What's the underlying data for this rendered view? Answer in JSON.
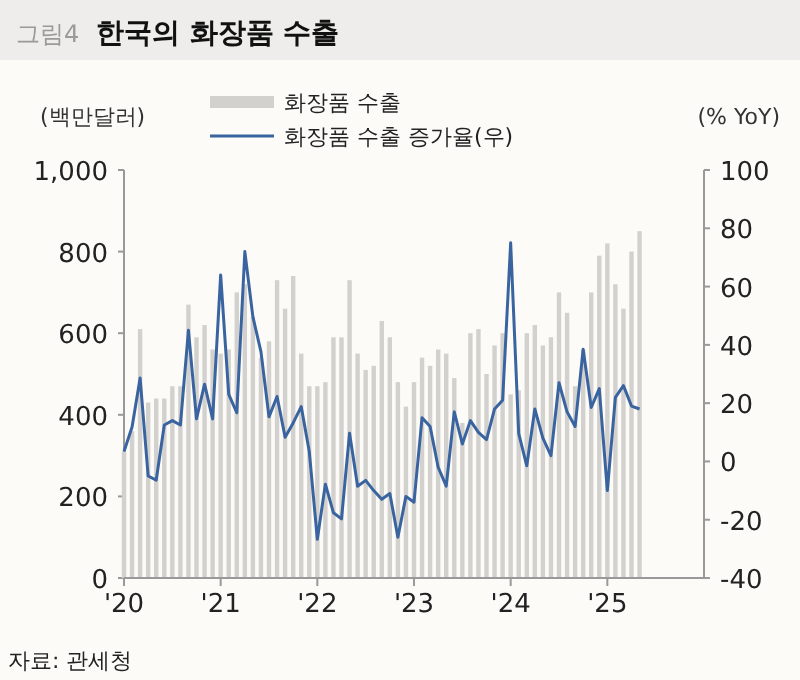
{
  "chart_data": {
    "type": "bar",
    "title": "한국의 화장품 수출",
    "annotations": [
      "그림4",
      "자료: 관세청"
    ],
    "ylabel": "(백만달러)",
    "y2label": "(% YoY)",
    "x": [
      "2020-01",
      "2020-02",
      "2020-03",
      "2020-04",
      "2020-05",
      "2020-06",
      "2020-07",
      "2020-08",
      "2020-09",
      "2020-10",
      "2020-11",
      "2020-12",
      "2021-01",
      "2021-02",
      "2021-03",
      "2021-04",
      "2021-05",
      "2021-06",
      "2021-07",
      "2021-08",
      "2021-09",
      "2021-10",
      "2021-11",
      "2021-12",
      "2022-01",
      "2022-02",
      "2022-03",
      "2022-04",
      "2022-05",
      "2022-06",
      "2022-07",
      "2022-08",
      "2022-09",
      "2022-10",
      "2022-11",
      "2022-12",
      "2023-01",
      "2023-02",
      "2023-03",
      "2023-04",
      "2023-05",
      "2023-06",
      "2023-07",
      "2023-08",
      "2023-09",
      "2023-10",
      "2023-11",
      "2023-12",
      "2024-01",
      "2024-02",
      "2024-03",
      "2024-04",
      "2024-05",
      "2024-06",
      "2024-07",
      "2024-08",
      "2024-09",
      "2024-10",
      "2024-11",
      "2024-12",
      "2025-01",
      "2025-02",
      "2025-03",
      "2025-04",
      "2025-05"
    ],
    "series": [
      {
        "name": "화장품 수출",
        "color": "#d3d1ce",
        "values": [
          310,
          360,
          610,
          430,
          440,
          440,
          470,
          470,
          670,
          590,
          620,
          560,
          550,
          560,
          700,
          720,
          640,
          540,
          580,
          730,
          660,
          740,
          550,
          470,
          470,
          480,
          590,
          590,
          730,
          550,
          510,
          520,
          630,
          590,
          480,
          420,
          480,
          540,
          520,
          560,
          550,
          490,
          380,
          600,
          610,
          500,
          570,
          600,
          450,
          460,
          600,
          620,
          570,
          590,
          700,
          650,
          470,
          560,
          700,
          790,
          820,
          720,
          660,
          800,
          850
        ]
      },
      {
        "name": "화장품 수출 증가율(우)",
        "type": "line",
        "axis": "y2",
        "color": "#3a64a0",
        "values": [
          3.4,
          11.8,
          28.6,
          -5,
          -6.4,
          12.5,
          14,
          12.5,
          45,
          14.6,
          26.5,
          14.6,
          64,
          23,
          16.7,
          72,
          49.6,
          37.7,
          15.3,
          22.3,
          8.3,
          13.2,
          18.8,
          3.4,
          -26.7,
          -7.8,
          -17.6,
          -19.7,
          9.7,
          -8.5,
          -6.5,
          -10,
          -13,
          -11,
          -26,
          -12,
          -14,
          15,
          12,
          -2,
          -8.5,
          17,
          6,
          14,
          10,
          7.5,
          18,
          21,
          75,
          9.5,
          -1.5,
          18,
          8,
          2,
          27,
          17,
          12,
          38.5,
          18.5,
          25,
          -10,
          22,
          26,
          19,
          18
        ]
      }
    ],
    "xlim": [
      "2020-01",
      "2026-01"
    ],
    "xticks": [
      {
        "value": "2020-01",
        "label": "'20"
      },
      {
        "value": "2021-01",
        "label": "'21"
      },
      {
        "value": "2022-01",
        "label": "'22"
      },
      {
        "value": "2023-01",
        "label": "'23"
      },
      {
        "value": "2024-01",
        "label": "'24"
      },
      {
        "value": "2025-01",
        "label": "'25"
      }
    ],
    "ylim": [
      0,
      1000
    ],
    "yticks": [
      {
        "value": 0,
        "label": "0"
      },
      {
        "value": 200,
        "label": "200"
      },
      {
        "value": 400,
        "label": "400"
      },
      {
        "value": 600,
        "label": "600"
      },
      {
        "value": 800,
        "label": "800"
      },
      {
        "value": 1000,
        "label": "1,000"
      }
    ],
    "y2lim": [
      -40,
      100
    ],
    "y2ticks": [
      -40,
      -20,
      0,
      20,
      40,
      60,
      80,
      100
    ],
    "legend": "top",
    "grid": false
  }
}
